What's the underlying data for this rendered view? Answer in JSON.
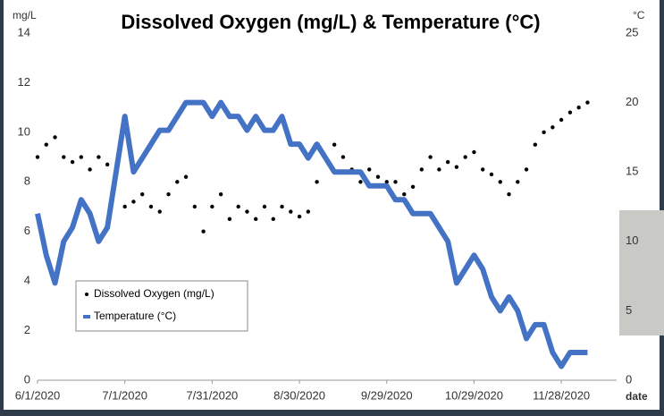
{
  "chart_data": {
    "type": "scatter-line",
    "title": "Dissolved Oxygen (mg/L) & Temperature (°C)",
    "y_label": "mg/L",
    "y2_label": "°C",
    "x_label": "date",
    "x": [
      "2020-06-01",
      "2020-06-04",
      "2020-06-07",
      "2020-06-10",
      "2020-06-13",
      "2020-06-16",
      "2020-06-19",
      "2020-06-22",
      "2020-06-25",
      "2020-06-28",
      "2020-07-01",
      "2020-07-04",
      "2020-07-07",
      "2020-07-10",
      "2020-07-13",
      "2020-07-16",
      "2020-07-19",
      "2020-07-22",
      "2020-07-25",
      "2020-07-28",
      "2020-07-31",
      "2020-08-03",
      "2020-08-06",
      "2020-08-09",
      "2020-08-12",
      "2020-08-15",
      "2020-08-18",
      "2020-08-21",
      "2020-08-24",
      "2020-08-27",
      "2020-08-30",
      "2020-09-02",
      "2020-09-05",
      "2020-09-08",
      "2020-09-11",
      "2020-09-14",
      "2020-09-17",
      "2020-09-20",
      "2020-09-23",
      "2020-09-26",
      "2020-09-29",
      "2020-10-02",
      "2020-10-05",
      "2020-10-08",
      "2020-10-11",
      "2020-10-14",
      "2020-10-17",
      "2020-10-20",
      "2020-10-23",
      "2020-10-26",
      "2020-10-29",
      "2020-11-01",
      "2020-11-04",
      "2020-11-07",
      "2020-11-10",
      "2020-11-13",
      "2020-11-16",
      "2020-11-19",
      "2020-11-22",
      "2020-11-25",
      "2020-11-28",
      "2020-12-01",
      "2020-12-04",
      "2020-12-07"
    ],
    "series": [
      {
        "name": "Dissolved Oxygen (mg/L)",
        "color": "#000000",
        "style": "points",
        "values": [
          9,
          9.5,
          9.8,
          9,
          8.8,
          9,
          8.5,
          9,
          8.7,
          8.5,
          7,
          7.2,
          7.5,
          7,
          6.8,
          7.5,
          8,
          8.2,
          7,
          6,
          7,
          7.5,
          6.5,
          7,
          6.8,
          6.5,
          7,
          6.5,
          7,
          6.8,
          6.6,
          6.8,
          8,
          9,
          9.5,
          9,
          8.5,
          8,
          8.5,
          8.2,
          8,
          8,
          7.5,
          7.8,
          8.5,
          9,
          8.5,
          8.8,
          8.6,
          9,
          9.2,
          8.5,
          8.3,
          8,
          7.5,
          8,
          8.5,
          9.5,
          10,
          10.2,
          10.5,
          10.8,
          11,
          11.2
        ]
      },
      {
        "name": "Temperature (°C)",
        "color": "#4472c4",
        "style": "line",
        "axis": "y2",
        "values": [
          12,
          9,
          7,
          10,
          11,
          13,
          12,
          10,
          11,
          15,
          19,
          15,
          16,
          17,
          18,
          18,
          19,
          20,
          20,
          20,
          19,
          20,
          19,
          19,
          18,
          19,
          18,
          18,
          19,
          17,
          17,
          16,
          17,
          16,
          15,
          15,
          15,
          15,
          14,
          14,
          14,
          13,
          13,
          12,
          12,
          12,
          11,
          10,
          7,
          8,
          9,
          8,
          6,
          5,
          6,
          5,
          3,
          4,
          4,
          2,
          1,
          2,
          2,
          2
        ]
      }
    ],
    "xlim": [
      "2020-06-01",
      "2020-12-17"
    ],
    "xticks": [
      {
        "value": "2020-06-01",
        "label": "6/1/2020"
      },
      {
        "value": "2020-07-01",
        "label": "7/1/2020"
      },
      {
        "value": "2020-07-31",
        "label": "7/31/2020"
      },
      {
        "value": "2020-08-30",
        "label": "8/30/2020"
      },
      {
        "value": "2020-09-29",
        "label": "9/29/2020"
      },
      {
        "value": "2020-10-29",
        "label": "10/29/2020"
      },
      {
        "value": "2020-11-28",
        "label": "11/28/2020"
      }
    ],
    "ylim": [
      0,
      14
    ],
    "yticks": [
      0,
      2,
      4,
      6,
      8,
      10,
      12,
      14
    ],
    "y2lim": [
      0,
      25
    ],
    "y2ticks": [
      0,
      5,
      10,
      15,
      20,
      25
    ],
    "legend": "lower-left"
  }
}
